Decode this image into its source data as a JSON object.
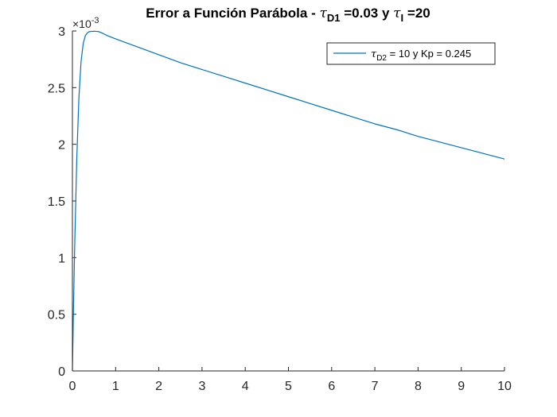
{
  "chart_data": {
    "type": "line",
    "title": {
      "prefix": "Error a Función Parábola - ",
      "tau1_sym": "τ",
      "tau1_sub": "D1",
      "mid": " =0.03 y ",
      "tau2_sym": "τ",
      "tau2_sub": "I",
      "suffix": " =20"
    },
    "xlabel": "",
    "ylabel": "",
    "xlim": [
      0,
      10
    ],
    "ylim": [
      0,
      0.003
    ],
    "y_exponent_label": {
      "times": "×10",
      "power": "-3"
    },
    "x_ticks": [
      0,
      1,
      2,
      3,
      4,
      5,
      6,
      7,
      8,
      9,
      10
    ],
    "x_tick_labels": [
      "0",
      "1",
      "2",
      "3",
      "4",
      "5",
      "6",
      "7",
      "8",
      "9",
      "10"
    ],
    "y_ticks": [
      0,
      0.0005,
      0.001,
      0.0015,
      0.002,
      0.0025,
      0.003
    ],
    "y_tick_labels": [
      "0",
      "0.5",
      "1",
      "1.5",
      "2",
      "2.5",
      "3"
    ],
    "grid": false,
    "legend_position": "top-right",
    "series": [
      {
        "name": {
          "sym": "τ",
          "sub": "D2",
          "rest": " = 10 y Kp = 0.245"
        },
        "color": "#0072BD",
        "x": [
          0,
          0.02,
          0.05,
          0.1,
          0.15,
          0.2,
          0.25,
          0.3,
          0.35,
          0.4,
          0.5,
          0.6,
          0.7,
          0.8,
          1,
          1.5,
          2,
          2.5,
          3,
          3.5,
          4,
          4.5,
          5,
          5.5,
          6,
          6.5,
          7,
          7.5,
          8,
          8.5,
          9,
          9.5,
          10
        ],
        "y": [
          0,
          0.00045,
          0.00106,
          0.00186,
          0.00241,
          0.00273,
          0.00289,
          0.00296,
          0.002985,
          0.002995,
          0.002998,
          0.002995,
          0.00298,
          0.00296,
          0.00293,
          0.00286,
          0.00279,
          0.00272,
          0.00266,
          0.0026,
          0.00254,
          0.00248,
          0.00242,
          0.00236,
          0.0023,
          0.00224,
          0.00218,
          0.00213,
          0.00207,
          0.00202,
          0.00197,
          0.00192,
          0.00187
        ]
      }
    ]
  }
}
